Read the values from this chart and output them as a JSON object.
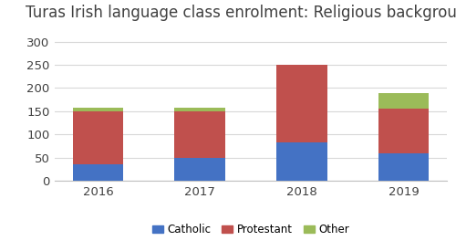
{
  "title": "Turas Irish language class enrolment: Religious background",
  "years": [
    "2016",
    "2017",
    "2018",
    "2019"
  ],
  "catholic": [
    35,
    50,
    82,
    60
  ],
  "protestant": [
    115,
    100,
    168,
    95
  ],
  "other": [
    8,
    8,
    0,
    35
  ],
  "catholic_color": "#4472c4",
  "protestant_color": "#c0504d",
  "other_color": "#9bbb59",
  "ylim": [
    0,
    325
  ],
  "yticks": [
    0,
    50,
    100,
    150,
    200,
    250,
    300
  ],
  "bar_width": 0.5,
  "title_fontsize": 12,
  "tick_fontsize": 9.5,
  "legend_fontsize": 8.5,
  "background_color": "#ffffff",
  "grid_color": "#d8d8d8"
}
